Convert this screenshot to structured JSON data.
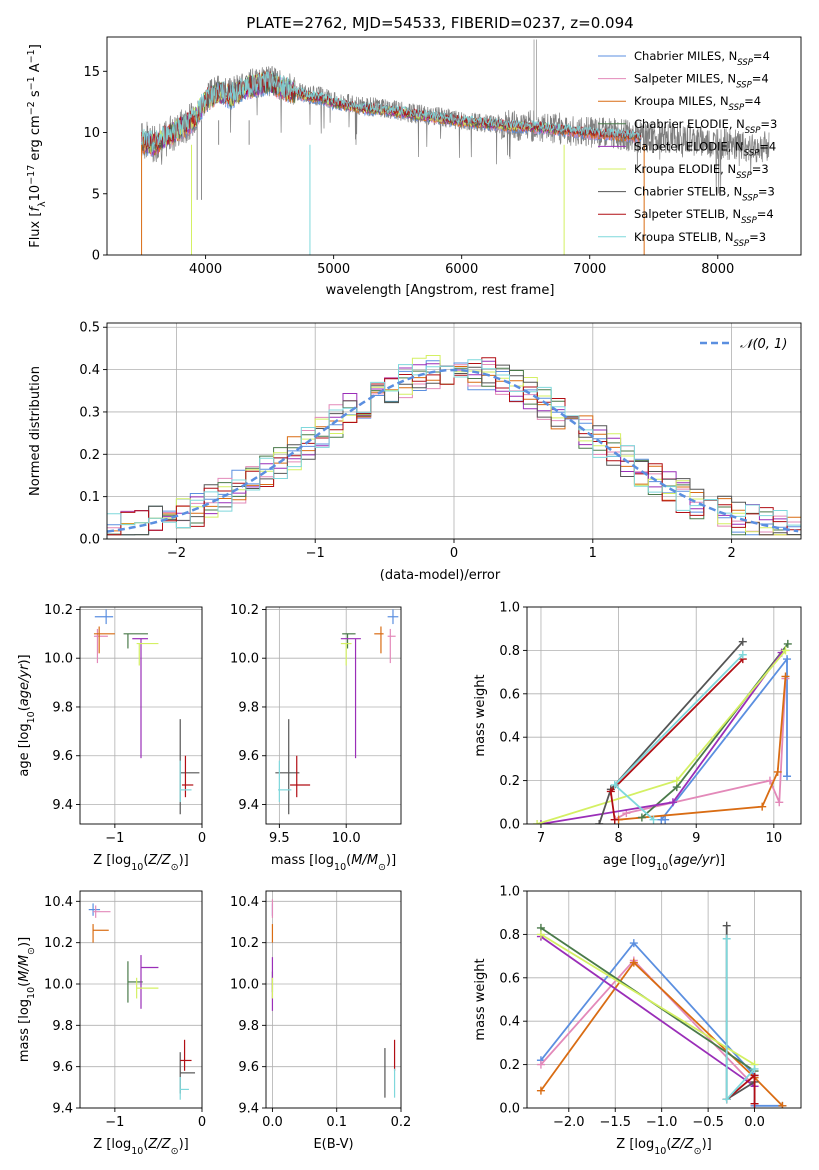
{
  "colors": {
    "Chabrier MILES": "#5b8fe0",
    "Salpeter MILES": "#e389b9",
    "Kroupa MILES": "#d96c13",
    "Chabrier ELODIE": "#4a7a4a",
    "Salpeter ELODIE": "#9a2eb8",
    "Kroupa ELODIE": "#d4f063",
    "Chabrier STELIB": "#555555",
    "Salpeter STELIB": "#b10e14",
    "Kroupa STELIB": "#7fd8dc",
    "grid": "#b0b0b0",
    "normal": "#5b8fe0"
  },
  "chart_data": [
    {
      "id": "spectrum",
      "type": "line",
      "title": "PLATE=2762, MJD=54533, FIBERID=0237, z=0.094",
      "xlabel": "wavelength [Angstrom, rest frame]",
      "ylabel": "Flux [f_λ 10^-17 erg cm^-2 s^-1 A^-1]",
      "xlim": [
        3230,
        8650
      ],
      "ylim": [
        0,
        17.8
      ],
      "xticks": [
        4000,
        5000,
        6000,
        7000,
        8000
      ],
      "yticks": [
        0,
        5,
        10,
        15
      ],
      "legend": "top-right",
      "legend_entries": [
        {
          "label": "Chabrier MILES",
          "nssp": "4"
        },
        {
          "label": "Salpeter MILES",
          "nssp": "4"
        },
        {
          "label": "Kroupa MILES",
          "nssp": "4"
        },
        {
          "label": "Chabrier ELODIE",
          "nssp": "3"
        },
        {
          "label": "Salpeter ELODIE",
          "nssp": "4"
        },
        {
          "label": "Kroupa ELODIE",
          "nssp": "3"
        },
        {
          "label": "Chabrier STELIB",
          "nssp": "3"
        },
        {
          "label": "Salpeter STELIB",
          "nssp": "4"
        },
        {
          "label": "Kroupa STELIB",
          "nssp": "3"
        }
      ],
      "data_x": [
        3500,
        3600,
        3700,
        3800,
        3900,
        4000,
        4100,
        4200,
        4300,
        4400,
        4500,
        4600,
        4700,
        4800,
        4900,
        5000,
        5200,
        5400,
        5600,
        5800,
        6000,
        6200,
        6400,
        6600,
        6800,
        7000,
        7200,
        7400,
        7600,
        7800,
        8000,
        8200,
        8400
      ],
      "data_y": [
        9.5,
        9.0,
        9.6,
        10.5,
        11.0,
        12.8,
        13.5,
        13.3,
        13.8,
        14.0,
        14.2,
        13.8,
        13.5,
        13.0,
        13.0,
        12.6,
        12.2,
        12.0,
        11.6,
        11.3,
        11.0,
        10.8,
        10.6,
        10.5,
        10.3,
        10.0,
        9.9,
        9.6,
        9.6,
        9.4,
        9.1,
        8.9,
        8.8
      ],
      "model_x": [
        3500,
        3600,
        3700,
        3800,
        3900,
        4000,
        4100,
        4200,
        4300,
        4400,
        4500,
        4600,
        4700,
        4800,
        4900,
        5000,
        5200,
        5400,
        5600,
        5800,
        6000,
        6200,
        6400,
        6600,
        6800,
        7000,
        7200,
        7400
      ],
      "model_y": [
        9.3,
        9.0,
        9.7,
        10.3,
        11.0,
        12.6,
        13.3,
        13.0,
        13.6,
        13.9,
        14.1,
        13.6,
        13.3,
        12.9,
        12.8,
        12.4,
        12.0,
        11.8,
        11.5,
        11.2,
        10.9,
        10.7,
        10.5,
        10.4,
        10.2,
        9.9,
        9.8,
        9.6
      ]
    },
    {
      "id": "residuals",
      "type": "bar",
      "xlabel": "(data-model)/error",
      "ylabel": "Normed distribution",
      "xlim": [
        -2.5,
        2.5
      ],
      "ylim": [
        0,
        0.51
      ],
      "xticks": [
        -2,
        -1,
        0,
        1,
        2
      ],
      "yticks": [
        0.0,
        0.1,
        0.2,
        0.3,
        0.4,
        0.5
      ],
      "legend": "top-right",
      "normal_label": "𝒩(0, 1)"
    },
    {
      "id": "age-vs-Z",
      "type": "scatter",
      "xlabel": "Z [log10(Z/Z⊙)]",
      "ylabel": "age [log10(age/yr)]",
      "xlim": [
        -1.4,
        0
      ],
      "ylim": [
        9.32,
        10.21
      ],
      "xticks": [
        -1,
        0
      ],
      "yticks": [
        9.4,
        9.6,
        9.8,
        10.0,
        10.2
      ],
      "points": [
        {
          "series": "Chabrier MILES",
          "x": -1.1,
          "y": 10.17,
          "xerr": [
            0.13,
            0.08
          ],
          "yerr": [
            0.03,
            0.03
          ]
        },
        {
          "series": "Salpeter MILES",
          "x": -1.2,
          "y": 10.09,
          "xerr": [
            0.04,
            0.12
          ],
          "yerr": [
            0.11,
            0.03
          ]
        },
        {
          "series": "Kroupa MILES",
          "x": -1.18,
          "y": 10.1,
          "xerr": [
            0.06,
            0.18
          ],
          "yerr": [
            0.08,
            0.03
          ]
        },
        {
          "series": "Chabrier ELODIE",
          "x": -0.85,
          "y": 10.1,
          "xerr": [
            0.05,
            0.23
          ],
          "yerr": [
            0.06,
            0.0
          ]
        },
        {
          "series": "Salpeter ELODIE",
          "x": -0.7,
          "y": 10.08,
          "xerr": [
            0.1,
            0.08
          ],
          "yerr": [
            0.49,
            0.0
          ]
        },
        {
          "series": "Kroupa ELODIE",
          "x": -0.72,
          "y": 10.06,
          "xerr": [
            0.03,
            0.22
          ],
          "yerr": [
            0.09,
            0.0
          ]
        },
        {
          "series": "Chabrier STELIB",
          "x": -0.25,
          "y": 9.53,
          "xerr": [
            0.0,
            0.22
          ],
          "yerr": [
            0.17,
            0.22
          ]
        },
        {
          "series": "Salpeter STELIB",
          "x": -0.19,
          "y": 9.48,
          "xerr": [
            0.04,
            0.09
          ],
          "yerr": [
            0.05,
            0.12
          ]
        },
        {
          "series": "Kroupa STELIB",
          "x": -0.25,
          "y": 9.46,
          "xerr": [
            0.0,
            0.13
          ],
          "yerr": [
            0.05,
            0.12
          ]
        }
      ]
    },
    {
      "id": "age-vs-mass",
      "type": "scatter",
      "xlabel": "mass [log10(M/M⊙)]",
      "ylabel": "",
      "xlim": [
        9.4,
        10.41
      ],
      "ylim": [
        9.32,
        10.21
      ],
      "xticks": [
        9.5,
        10.0
      ],
      "yticks": [
        9.4,
        9.6,
        9.8,
        10.0,
        10.2
      ],
      "points": [
        {
          "series": "Chabrier MILES",
          "x": 10.35,
          "y": 10.17,
          "xerr": [
            0.04,
            0.04
          ],
          "yerr": [
            0.03,
            0.03
          ]
        },
        {
          "series": "Salpeter MILES",
          "x": 10.33,
          "y": 10.09,
          "xerr": [
            0.02,
            0.04
          ],
          "yerr": [
            0.11,
            0.03
          ]
        },
        {
          "series": "Kroupa MILES",
          "x": 10.26,
          "y": 10.1,
          "xerr": [
            0.05,
            0.02
          ],
          "yerr": [
            0.08,
            0.03
          ]
        },
        {
          "series": "Chabrier ELODIE",
          "x": 10.01,
          "y": 10.1,
          "xerr": [
            0.04,
            0.06
          ],
          "yerr": [
            0.06,
            0.0
          ]
        },
        {
          "series": "Salpeter ELODIE",
          "x": 10.07,
          "y": 10.08,
          "xerr": [
            0.11,
            0.04
          ],
          "yerr": [
            0.49,
            0.0
          ]
        },
        {
          "series": "Kroupa ELODIE",
          "x": 10.0,
          "y": 10.06,
          "xerr": [
            0.04,
            0.04
          ],
          "yerr": [
            0.09,
            0.0
          ]
        },
        {
          "series": "Chabrier STELIB",
          "x": 9.57,
          "y": 9.53,
          "xerr": [
            0.1,
            0.08
          ],
          "yerr": [
            0.17,
            0.22
          ]
        },
        {
          "series": "Salpeter STELIB",
          "x": 9.63,
          "y": 9.48,
          "xerr": [
            0.05,
            0.1
          ],
          "yerr": [
            0.05,
            0.12
          ]
        },
        {
          "series": "Kroupa STELIB",
          "x": 9.5,
          "y": 9.46,
          "xerr": [
            0.01,
            0.09
          ],
          "yerr": [
            0.05,
            0.12
          ]
        }
      ]
    },
    {
      "id": "weight-vs-age",
      "type": "line",
      "xlabel": "age [log10(age/yr)]",
      "ylabel": "mass weight",
      "xlim": [
        6.82,
        10.35
      ],
      "ylim": [
        0,
        1
      ],
      "xticks": [
        7,
        8,
        9,
        10
      ],
      "yticks": [
        0.0,
        0.2,
        0.4,
        0.6,
        0.8,
        1.0
      ],
      "series": [
        {
          "name": "Chabrier MILES",
          "x": [
            8.6,
            8.55,
            10.17,
            10.17
          ],
          "y": [
            0.02,
            0.02,
            0.76,
            0.22
          ]
        },
        {
          "name": "Salpeter MILES",
          "x": [
            7.95,
            8.1,
            9.95,
            10.07,
            10.15
          ],
          "y": [
            0.02,
            0.05,
            0.2,
            0.1,
            0.67
          ]
        },
        {
          "name": "Kroupa MILES",
          "x": [
            8.0,
            9.85,
            10.05,
            10.15
          ],
          "y": [
            0.02,
            0.08,
            0.24,
            0.68
          ]
        },
        {
          "name": "Chabrier ELODIE",
          "x": [
            8.3,
            8.75,
            10.18
          ],
          "y": [
            0.03,
            0.17,
            0.83
          ]
        },
        {
          "name": "Salpeter ELODIE",
          "x": [
            7.0,
            8.7,
            10.1
          ],
          "y": [
            0.0,
            0.1,
            0.79
          ]
        },
        {
          "name": "Kroupa ELODIE",
          "x": [
            6.95,
            8.75,
            10.15
          ],
          "y": [
            0.0,
            0.2,
            0.8
          ]
        },
        {
          "name": "Chabrier STELIB",
          "x": [
            7.75,
            7.9,
            9.6
          ],
          "y": [
            0.0,
            0.16,
            0.84
          ]
        },
        {
          "name": "Salpeter STELIB",
          "x": [
            7.95,
            7.9,
            9.6
          ],
          "y": [
            0.02,
            0.15,
            0.76
          ]
        },
        {
          "name": "Kroupa STELIB",
          "x": [
            8.45,
            7.95,
            9.6
          ],
          "y": [
            0.02,
            0.18,
            0.78
          ]
        }
      ]
    },
    {
      "id": "mass-vs-Z",
      "type": "scatter",
      "xlabel": "Z [log10(Z/Z⊙)]",
      "ylabel": "mass [log10(M/M⊙)]",
      "xlim": [
        -1.4,
        0
      ],
      "ylim": [
        9.4,
        10.45
      ],
      "xticks": [
        -1,
        0
      ],
      "yticks": [
        9.4,
        9.6,
        9.8,
        10.0,
        10.2,
        10.4
      ],
      "points": [
        {
          "series": "Chabrier MILES",
          "x": -1.25,
          "y": 10.36,
          "xerr": [
            0.05,
            0.08
          ],
          "yerr": [
            0.03,
            0.03
          ]
        },
        {
          "series": "Salpeter MILES",
          "x": -1.22,
          "y": 10.35,
          "xerr": [
            0.03,
            0.17
          ],
          "yerr": [
            0.03,
            0.03
          ]
        },
        {
          "series": "Kroupa MILES",
          "x": -1.25,
          "y": 10.26,
          "xerr": [
            0.0,
            0.18
          ],
          "yerr": [
            0.06,
            0.03
          ]
        },
        {
          "series": "Chabrier ELODIE",
          "x": -0.85,
          "y": 10.01,
          "xerr": [
            0.0,
            0.17
          ],
          "yerr": [
            0.1,
            0.1
          ]
        },
        {
          "series": "Salpeter ELODIE",
          "x": -0.7,
          "y": 10.08,
          "xerr": [
            0.0,
            0.2
          ],
          "yerr": [
            0.2,
            0.06
          ]
        },
        {
          "series": "Kroupa ELODIE",
          "x": -0.75,
          "y": 9.98,
          "xerr": [
            0.0,
            0.25
          ],
          "yerr": [
            0.05,
            0.05
          ]
        },
        {
          "series": "Chabrier STELIB",
          "x": -0.25,
          "y": 9.57,
          "xerr": [
            0.0,
            0.17
          ],
          "yerr": [
            0.1,
            0.1
          ]
        },
        {
          "series": "Salpeter STELIB",
          "x": -0.2,
          "y": 9.63,
          "xerr": [
            0.05,
            0.08
          ],
          "yerr": [
            0.05,
            0.1
          ]
        },
        {
          "series": "Kroupa STELIB",
          "x": -0.25,
          "y": 9.49,
          "xerr": [
            0.0,
            0.1
          ],
          "yerr": [
            0.05,
            0.06
          ]
        }
      ]
    },
    {
      "id": "mass-vs-ebv",
      "type": "scatter",
      "xlabel": "E(B-V)",
      "ylabel": "",
      "xlim": [
        -0.01,
        0.2
      ],
      "ylim": [
        9.4,
        10.45
      ],
      "xticks": [
        0.0,
        0.1,
        0.2
      ],
      "yticks": [
        9.4,
        9.6,
        9.8,
        10.0,
        10.2,
        10.4
      ],
      "points": [
        {
          "series": "Chabrier MILES",
          "x": 0.0,
          "y": 10.36,
          "yerr": [
            0.03,
            0.03
          ]
        },
        {
          "series": "Salpeter MILES",
          "x": 0.0,
          "y": 10.35,
          "yerr": [
            0.03,
            0.06
          ]
        },
        {
          "series": "Kroupa MILES",
          "x": 0.0,
          "y": 10.26,
          "yerr": [
            0.06,
            0.03
          ]
        },
        {
          "series": "Chabrier ELODIE",
          "x": 0.0,
          "y": 10.01,
          "yerr": [
            0.05,
            0.05
          ]
        },
        {
          "series": "Salpeter ELODIE",
          "x": 0.0,
          "y": 10.0,
          "yerr": [
            0.13,
            0.13
          ]
        },
        {
          "series": "Kroupa ELODIE",
          "x": 0.0,
          "y": 9.98,
          "yerr": [
            0.05,
            0.05
          ]
        },
        {
          "series": "Chabrier STELIB",
          "x": 0.175,
          "y": 9.57,
          "yerr": [
            0.12,
            0.12
          ]
        },
        {
          "series": "Salpeter STELIB",
          "x": 0.19,
          "y": 9.63,
          "yerr": [
            0.05,
            0.1
          ]
        },
        {
          "series": "Kroupa STELIB",
          "x": 0.19,
          "y": 9.52,
          "yerr": [
            0.07,
            0.07
          ]
        }
      ]
    },
    {
      "id": "weight-vs-Z",
      "type": "line",
      "xlabel": "Z [log10(Z/Z⊙)]",
      "ylabel": "mass weight",
      "xlim": [
        -2.45,
        0.5
      ],
      "ylim": [
        0,
        1
      ],
      "xticks": [
        -2.0,
        -1.5,
        -1.0,
        -0.5,
        0.0
      ],
      "yticks": [
        0.0,
        0.2,
        0.4,
        0.6,
        0.8,
        1.0
      ],
      "series": [
        {
          "name": "Chabrier MILES",
          "x": [
            -2.3,
            -1.3,
            0.0,
            0.0,
            0.3
          ],
          "y": [
            0.22,
            0.76,
            0.15,
            0.01,
            0.01
          ]
        },
        {
          "name": "Salpeter MILES",
          "x": [
            -2.3,
            -1.3,
            0.0
          ],
          "y": [
            0.2,
            0.68,
            0.1
          ]
        },
        {
          "name": "Kroupa MILES",
          "x": [
            -2.3,
            -1.3,
            0.0,
            0.3
          ],
          "y": [
            0.08,
            0.67,
            0.14,
            0.01
          ]
        },
        {
          "name": "Chabrier ELODIE",
          "x": [
            -2.3,
            0.0
          ],
          "y": [
            0.83,
            0.17
          ]
        },
        {
          "name": "Salpeter ELODIE",
          "x": [
            -2.3,
            0.0
          ],
          "y": [
            0.79,
            0.1
          ]
        },
        {
          "name": "Kroupa ELODIE",
          "x": [
            -2.3,
            0.0
          ],
          "y": [
            0.8,
            0.2
          ]
        },
        {
          "name": "Chabrier STELIB",
          "x": [
            -0.3,
            -0.3,
            0.0
          ],
          "y": [
            0.84,
            0.04,
            0.12
          ]
        },
        {
          "name": "Salpeter STELIB",
          "x": [
            -0.3,
            0.0,
            0.0
          ],
          "y": [
            0.04,
            0.15,
            0.02
          ]
        },
        {
          "name": "Kroupa STELIB",
          "x": [
            -0.3,
            -0.3,
            0.0
          ],
          "y": [
            0.78,
            0.04,
            0.18
          ]
        }
      ]
    }
  ]
}
